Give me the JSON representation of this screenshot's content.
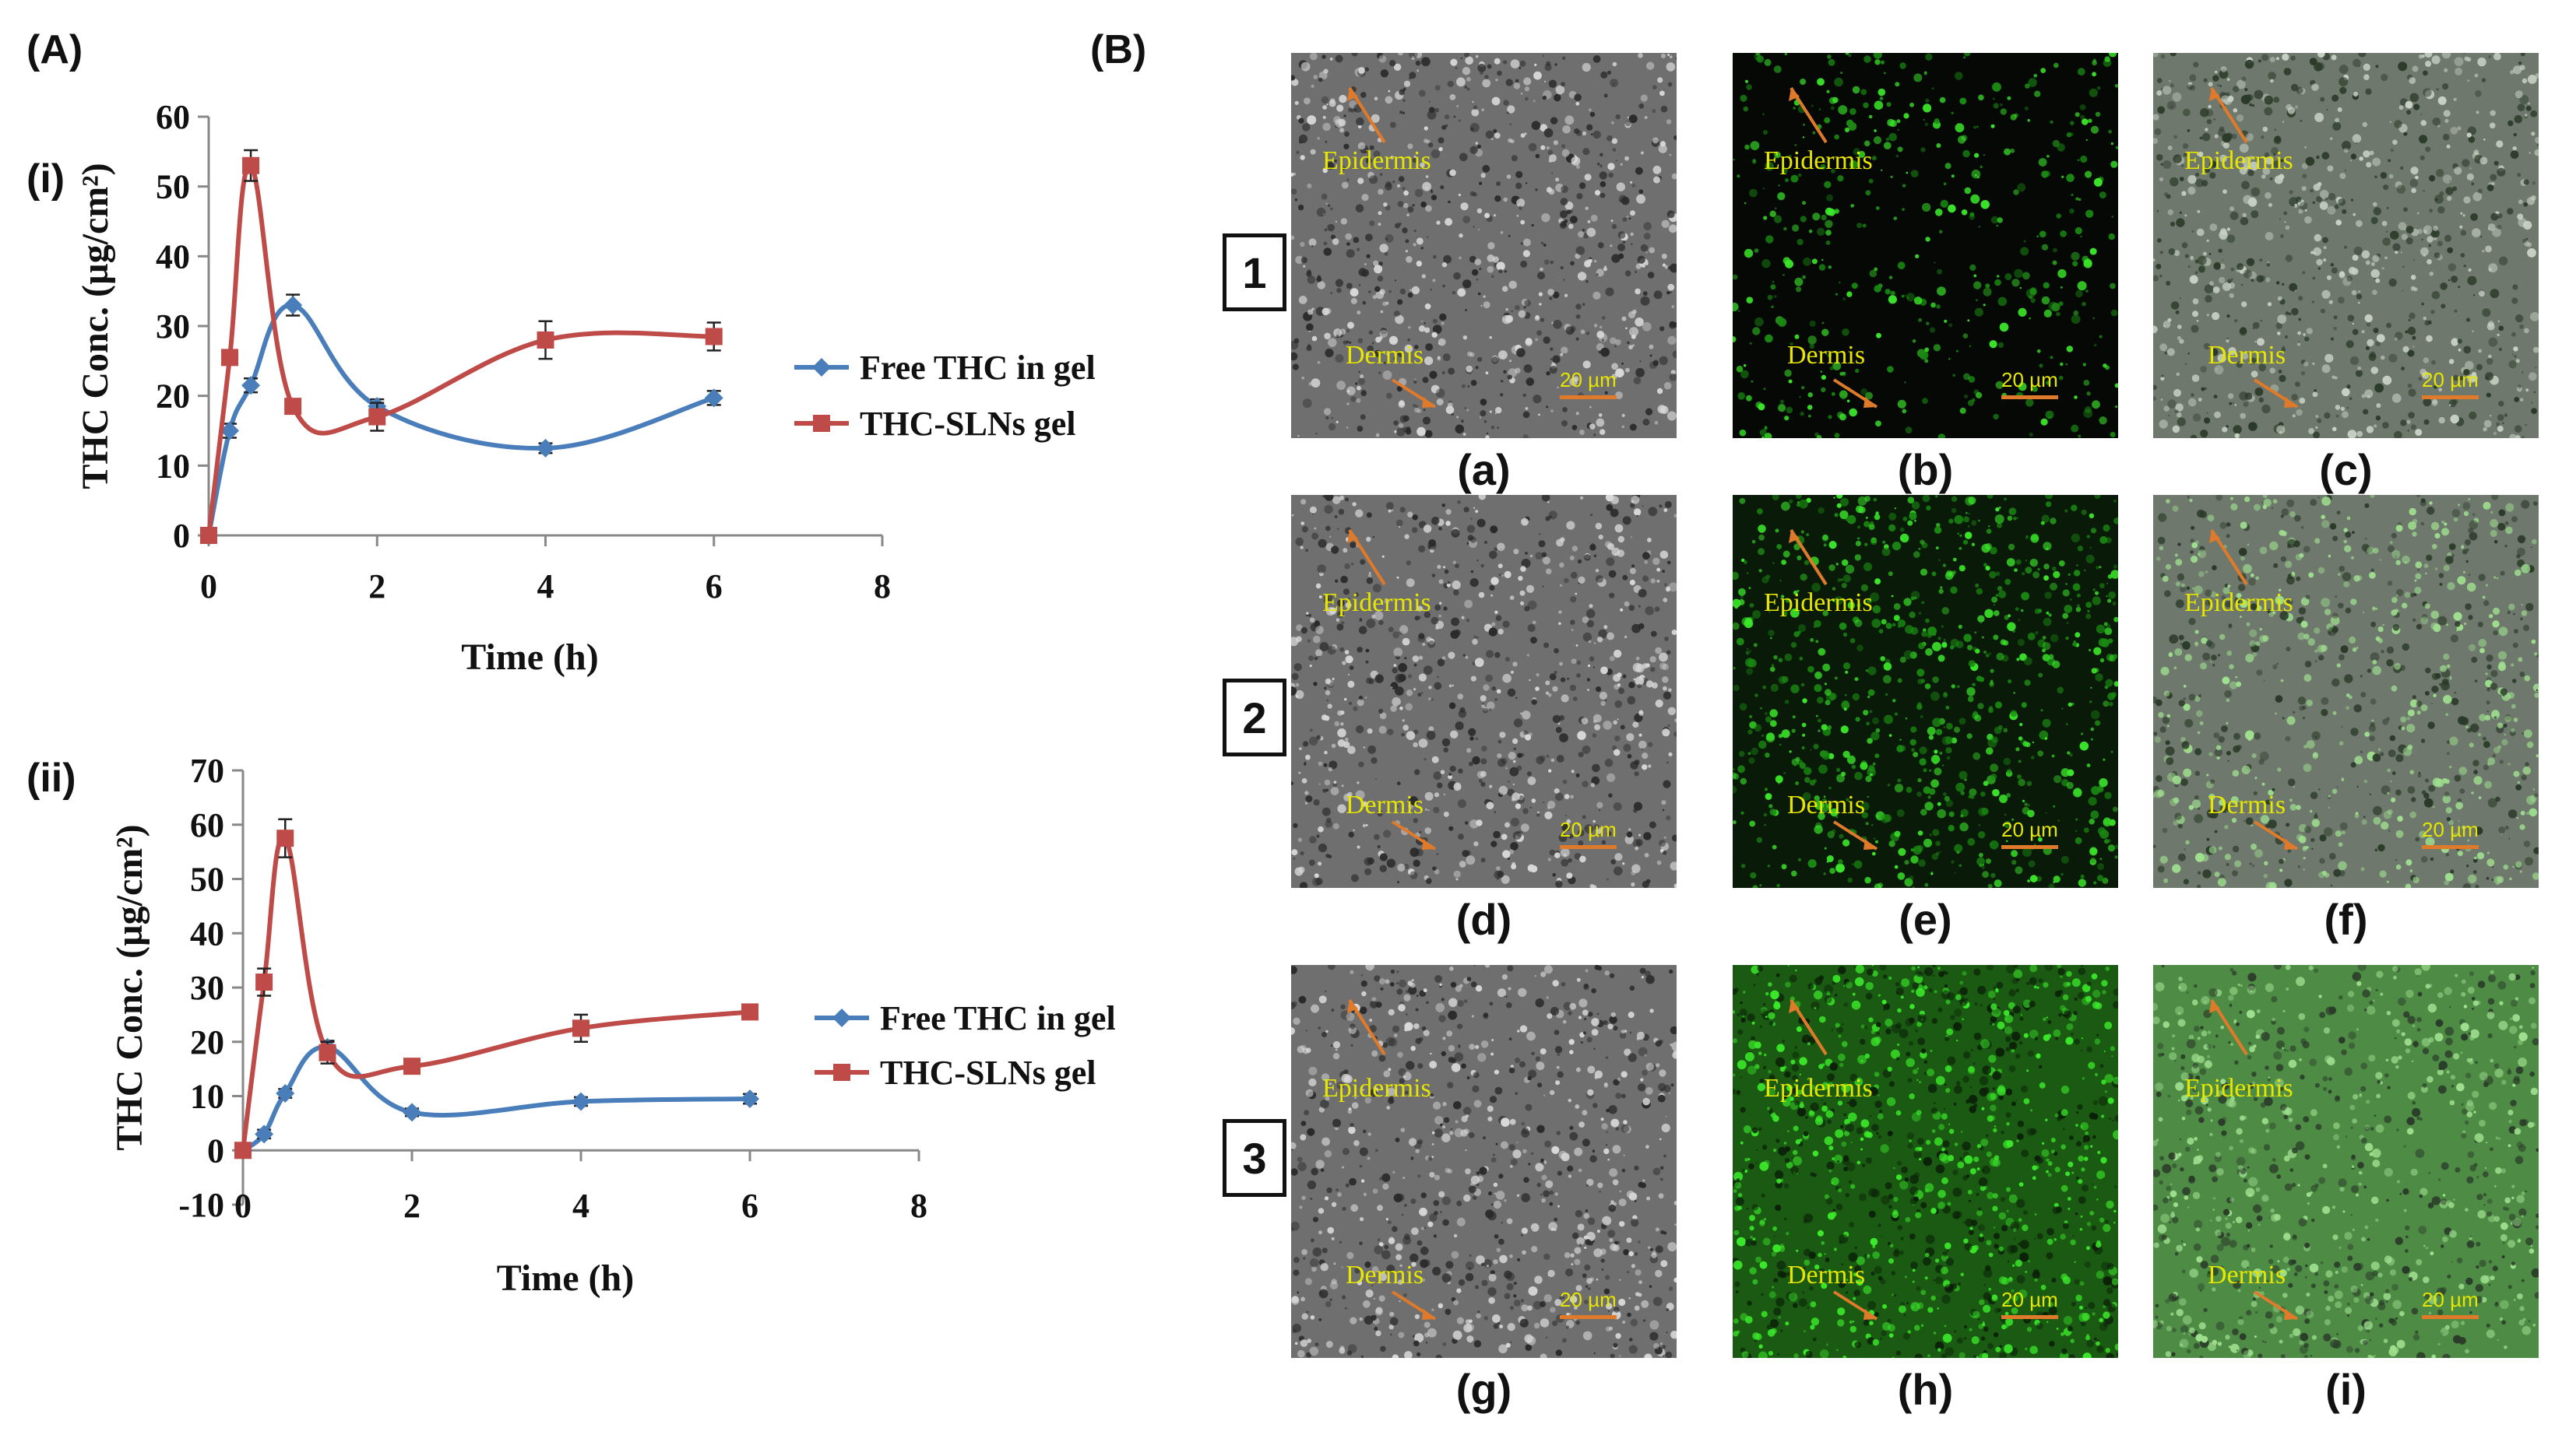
{
  "panels": {
    "A": "(A)",
    "B": "(B)",
    "sub_i": "(i)",
    "sub_ii": "(ii)"
  },
  "colors": {
    "series_free": "#4a7ebb",
    "series_sln": "#be4b48",
    "axis": "#888888",
    "annotation": "#e6e600",
    "arrow": "#e07a2b"
  },
  "chart_data": [
    {
      "type": "line",
      "title": "",
      "xlabel": "Time (h)",
      "ylabel": "THC Conc. (µg/cm²)",
      "xlim": [
        0,
        8
      ],
      "ylim": [
        0,
        60
      ],
      "xticks": [
        "0",
        "2",
        "4",
        "6",
        "8"
      ],
      "yticks": [
        "0",
        "10",
        "20",
        "30",
        "40",
        "50",
        "60"
      ],
      "legend_position": "right",
      "series": [
        {
          "name": "Free THC in gel",
          "color": "#4a7ebb",
          "marker": "diamond",
          "x": [
            0,
            0.25,
            0.5,
            1,
            2,
            4,
            6
          ],
          "y": [
            0,
            15,
            21.5,
            33,
            18.5,
            12.5,
            19.7
          ],
          "err": [
            0,
            1,
            1,
            1.5,
            1,
            0.7,
            1
          ]
        },
        {
          "name": "THC-SLNs gel",
          "color": "#be4b48",
          "marker": "square",
          "x": [
            0,
            0.25,
            0.5,
            1,
            2,
            4,
            6
          ],
          "y": [
            0,
            25.5,
            53,
            18.5,
            17,
            28,
            28.5
          ],
          "err": [
            0,
            1,
            2.2,
            1,
            2,
            2.7,
            2
          ]
        }
      ]
    },
    {
      "type": "line",
      "title": "",
      "xlabel": "Time (h)",
      "ylabel": "THC Conc. (µg/cm²)",
      "xlim": [
        0,
        8
      ],
      "ylim": [
        -10,
        70
      ],
      "xticks": [
        "0",
        "2",
        "4",
        "6",
        "8"
      ],
      "yticks": [
        "-10",
        "0",
        "10",
        "20",
        "30",
        "40",
        "50",
        "60",
        "70"
      ],
      "legend_position": "right",
      "series": [
        {
          "name": "Free THC in gel",
          "color": "#4a7ebb",
          "marker": "diamond",
          "x": [
            0,
            0.25,
            0.5,
            1,
            2,
            4,
            6
          ],
          "y": [
            0,
            3,
            10.5,
            19,
            7,
            9,
            9.5
          ],
          "err": [
            0,
            0.8,
            0.8,
            1.2,
            0.7,
            0.8,
            0.9
          ]
        },
        {
          "name": "THC-SLNs gel",
          "color": "#be4b48",
          "marker": "square",
          "x": [
            0,
            0.25,
            0.5,
            1,
            2,
            4,
            6
          ],
          "y": [
            0,
            31,
            57.5,
            18,
            15.5,
            22.5,
            25.5
          ],
          "err": [
            0,
            2.5,
            3.5,
            2,
            1.2,
            2.5,
            1
          ]
        }
      ]
    }
  ],
  "micrographs": {
    "rows": [
      "1",
      "2",
      "3"
    ],
    "captions": [
      "(a)",
      "(b)",
      "(c)",
      "(d)",
      "(e)",
      "(f)",
      "(g)",
      "(h)",
      "(i)"
    ],
    "epidermis": "Epidermis",
    "dermis": "Dermis",
    "scale_bar": "20 µm"
  }
}
